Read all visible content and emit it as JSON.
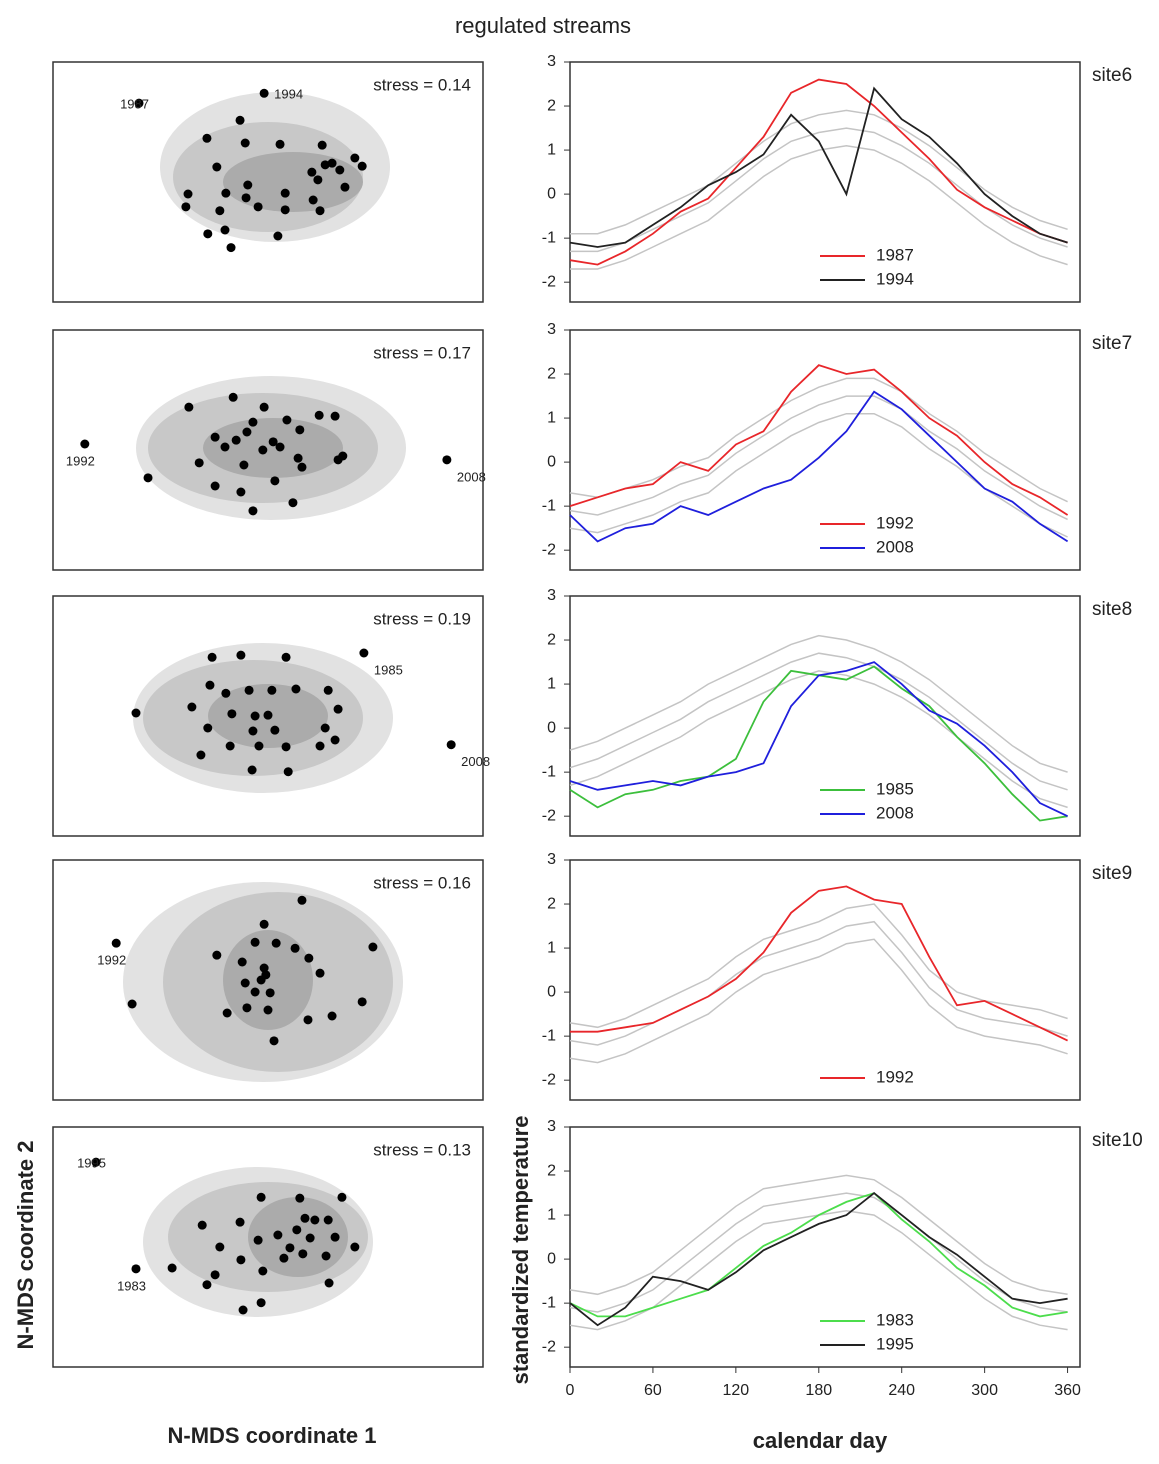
{
  "title": "regulated streams",
  "nmds_x_label": "N-MDS coordinate 1",
  "nmds_y_label": "N-MDS coordinate 2",
  "line_x_label": "calendar day",
  "line_y_label": "standardized temperature",
  "chart_data": [
    {
      "type": "scatter",
      "annotation": "stress = 0.14",
      "color": "#000000",
      "xlim": [
        -5,
        5
      ],
      "ylim": [
        -2.8,
        2.8
      ],
      "x": [
        -1.42,
        -0.65,
        -0.53,
        0.28,
        -1.19,
        -1.86,
        -1.91,
        -0.98,
        -0.47,
        -0.23,
        -0.51,
        -1.12,
        -1.4,
        -1.0,
        -0.86,
        0.23,
        0.4,
        0.4,
        1.02,
        1.26,
        1.33,
        1.49,
        1.67,
        1.79,
        2.02,
        2.19,
        1.05,
        1.21,
        1.16
      ],
      "y": [
        1.02,
        1.44,
        0.91,
        0.88,
        0.35,
        -0.28,
        -0.58,
        -0.26,
        -0.07,
        -0.58,
        -0.37,
        -0.67,
        -1.21,
        -1.12,
        -1.53,
        -1.26,
        -0.26,
        -0.65,
        0.23,
        0.86,
        0.4,
        0.44,
        0.28,
        -0.12,
        0.56,
        0.37,
        -0.42,
        -0.67,
        0.05
      ],
      "outliers": [
        {
          "label": "1987",
          "x": -3.0,
          "y": 1.84
        },
        {
          "label": "1994",
          "x": -0.09,
          "y": 2.07
        }
      ]
    },
    {
      "type": "line",
      "site_label": "site6",
      "xlim": [
        0,
        369
      ],
      "ylim": [
        -2.45,
        3
      ],
      "yticks": [
        -2,
        -1,
        0,
        1,
        2,
        3
      ],
      "legend": "lower center",
      "x": [
        0,
        20,
        40,
        60,
        80,
        100,
        120,
        140,
        160,
        180,
        200,
        220,
        240,
        260,
        280,
        300,
        320,
        340,
        360
      ],
      "background_series": [
        {
          "color": "#c4c4c4",
          "values": [
            -1.3,
            -1.3,
            -1.1,
            -0.8,
            -0.5,
            -0.2,
            0.3,
            0.8,
            1.2,
            1.4,
            1.5,
            1.4,
            1.1,
            0.7,
            0.2,
            -0.3,
            -0.7,
            -1.0,
            -1.2
          ]
        },
        {
          "color": "#c4c4c4",
          "values": [
            -0.9,
            -0.9,
            -0.7,
            -0.4,
            -0.1,
            0.2,
            0.7,
            1.2,
            1.6,
            1.8,
            1.9,
            1.8,
            1.5,
            1.1,
            0.6,
            0.1,
            -0.3,
            -0.6,
            -0.8
          ]
        },
        {
          "color": "#c4c4c4",
          "values": [
            -1.7,
            -1.7,
            -1.5,
            -1.2,
            -0.9,
            -0.6,
            -0.1,
            0.4,
            0.8,
            1.0,
            1.1,
            1.0,
            0.7,
            0.3,
            -0.2,
            -0.7,
            -1.1,
            -1.4,
            -1.6
          ]
        }
      ],
      "series": [
        {
          "name": "1987",
          "color": "#e8262a",
          "values": [
            -1.5,
            -1.6,
            -1.3,
            -0.9,
            -0.4,
            -0.1,
            0.6,
            1.3,
            2.3,
            2.6,
            2.5,
            2.0,
            1.4,
            0.8,
            0.1,
            -0.3,
            -0.6,
            -0.9,
            -1.1
          ]
        },
        {
          "name": "1994",
          "color": "#222222",
          "values": [
            -1.1,
            -1.2,
            -1.1,
            -0.7,
            -0.3,
            0.2,
            0.5,
            0.9,
            1.8,
            1.2,
            0.0,
            2.4,
            1.7,
            1.3,
            0.7,
            0.0,
            -0.5,
            -0.9,
            -1.1
          ]
        }
      ]
    },
    {
      "type": "scatter",
      "annotation": "stress = 0.17",
      "color": "#000000",
      "xlim": [
        -5,
        5
      ],
      "ylim": [
        -2.8,
        2.8
      ],
      "x": [
        -1.84,
        -0.81,
        -0.09,
        -0.35,
        0.44,
        1.19,
        1.56,
        -1.23,
        -0.74,
        -0.49,
        0.12,
        0.74,
        0.28,
        -1.0,
        -0.12,
        -1.6,
        -0.56,
        0.7,
        1.63,
        1.74,
        0.79,
        -1.23,
        -0.63,
        0.16,
        -2.79,
        0.58,
        -0.35
      ],
      "y": [
        1.0,
        1.23,
        1.0,
        0.65,
        0.7,
        0.81,
        0.79,
        0.3,
        0.23,
        0.42,
        0.19,
        0.47,
        0.07,
        0.07,
        0.0,
        -0.3,
        -0.35,
        -0.19,
        -0.23,
        -0.14,
        -0.4,
        -0.84,
        -0.98,
        -0.72,
        -0.65,
        -1.23,
        -1.42
      ],
      "outliers": [
        {
          "label": "1992",
          "x": -4.26,
          "y": 0.14
        },
        {
          "label": "2008",
          "x": 4.16,
          "y": -0.23
        }
      ]
    },
    {
      "type": "line",
      "site_label": "site7",
      "xlim": [
        0,
        369
      ],
      "ylim": [
        -2.45,
        3
      ],
      "yticks": [
        -2,
        -1,
        0,
        1,
        2,
        3
      ],
      "legend": "lower center",
      "x": [
        0,
        20,
        40,
        60,
        80,
        100,
        120,
        140,
        160,
        180,
        200,
        220,
        240,
        260,
        280,
        300,
        320,
        340,
        360
      ],
      "background_series": [
        {
          "color": "#c4c4c4",
          "values": [
            -1.1,
            -1.2,
            -1.0,
            -0.8,
            -0.5,
            -0.3,
            0.2,
            0.6,
            1.0,
            1.3,
            1.5,
            1.5,
            1.2,
            0.7,
            0.3,
            -0.2,
            -0.6,
            -1.0,
            -1.3
          ]
        },
        {
          "color": "#c4c4c4",
          "values": [
            -0.7,
            -0.8,
            -0.6,
            -0.4,
            -0.1,
            0.1,
            0.6,
            1.0,
            1.4,
            1.7,
            1.9,
            1.9,
            1.6,
            1.1,
            0.7,
            0.2,
            -0.2,
            -0.6,
            -0.9
          ]
        },
        {
          "color": "#c4c4c4",
          "values": [
            -1.5,
            -1.6,
            -1.4,
            -1.2,
            -0.9,
            -0.7,
            -0.2,
            0.2,
            0.6,
            0.9,
            1.1,
            1.1,
            0.8,
            0.3,
            -0.1,
            -0.6,
            -1.0,
            -1.4,
            -1.7
          ]
        }
      ],
      "series": [
        {
          "name": "1992",
          "color": "#e8262a",
          "values": [
            -1.0,
            -0.8,
            -0.6,
            -0.5,
            0.0,
            -0.2,
            0.4,
            0.7,
            1.6,
            2.2,
            2.0,
            2.1,
            1.6,
            1.0,
            0.6,
            0.0,
            -0.5,
            -0.8,
            -1.2
          ]
        },
        {
          "name": "2008",
          "color": "#1f1fdc",
          "values": [
            -1.2,
            -1.8,
            -1.5,
            -1.4,
            -1.0,
            -1.2,
            -0.9,
            -0.6,
            -0.4,
            0.1,
            0.7,
            1.6,
            1.2,
            0.6,
            0.0,
            -0.6,
            -0.9,
            -1.4,
            -1.8
          ]
        }
      ]
    },
    {
      "type": "scatter",
      "annotation": "stress = 0.19",
      "color": "#000000",
      "xlim": [
        -5,
        5
      ],
      "ylim": [
        -2.8,
        2.8
      ],
      "x": [
        -1.3,
        -0.63,
        0.42,
        -1.35,
        -0.98,
        -0.44,
        0.09,
        0.65,
        1.4,
        -3.07,
        -1.77,
        -0.84,
        -0.3,
        0.0,
        1.63,
        -1.4,
        -0.35,
        0.16,
        1.33,
        -0.88,
        -0.21,
        0.42,
        1.21,
        -1.56,
        -0.37,
        0.47,
        1.56
      ],
      "y": [
        1.37,
        1.42,
        1.37,
        0.72,
        0.53,
        0.6,
        0.6,
        0.63,
        0.6,
        0.07,
        0.21,
        0.05,
        0.0,
        0.02,
        0.16,
        -0.28,
        -0.35,
        -0.33,
        -0.28,
        -0.7,
        -0.7,
        -0.72,
        -0.7,
        -0.91,
        -1.26,
        -1.3,
        -0.56
      ],
      "outliers": [
        {
          "label": "1985",
          "x": 2.23,
          "y": 1.47
        },
        {
          "label": "2008",
          "x": 4.26,
          "y": -0.67
        }
      ]
    },
    {
      "type": "line",
      "site_label": "site8",
      "xlim": [
        0,
        369
      ],
      "ylim": [
        -2.45,
        3
      ],
      "yticks": [
        -2,
        -1,
        0,
        1,
        2,
        3
      ],
      "legend": "lower center",
      "x": [
        0,
        20,
        40,
        60,
        80,
        100,
        120,
        140,
        160,
        180,
        200,
        220,
        240,
        260,
        280,
        300,
        320,
        340,
        360
      ],
      "background_series": [
        {
          "color": "#c4c4c4",
          "values": [
            -0.9,
            -0.7,
            -0.4,
            -0.1,
            0.2,
            0.6,
            0.9,
            1.2,
            1.5,
            1.7,
            1.6,
            1.4,
            1.1,
            0.7,
            0.2,
            -0.3,
            -0.8,
            -1.2,
            -1.4
          ]
        },
        {
          "color": "#c4c4c4",
          "values": [
            -0.5,
            -0.3,
            0.0,
            0.3,
            0.6,
            1.0,
            1.3,
            1.6,
            1.9,
            2.1,
            2.0,
            1.8,
            1.5,
            1.1,
            0.6,
            0.1,
            -0.4,
            -0.8,
            -1.0
          ]
        },
        {
          "color": "#c4c4c4",
          "values": [
            -1.3,
            -1.1,
            -0.8,
            -0.5,
            -0.2,
            0.2,
            0.5,
            0.8,
            1.1,
            1.3,
            1.2,
            1.0,
            0.7,
            0.3,
            -0.2,
            -0.7,
            -1.2,
            -1.6,
            -1.8
          ]
        }
      ],
      "series": [
        {
          "name": "1985",
          "color": "#3cbf3c",
          "values": [
            -1.4,
            -1.8,
            -1.5,
            -1.4,
            -1.2,
            -1.1,
            -0.7,
            0.6,
            1.3,
            1.2,
            1.1,
            1.4,
            0.9,
            0.5,
            -0.2,
            -0.8,
            -1.5,
            -2.1,
            -2.0
          ]
        },
        {
          "name": "2008",
          "color": "#1f1fdc",
          "values": [
            -1.2,
            -1.4,
            -1.3,
            -1.2,
            -1.3,
            -1.1,
            -1.0,
            -0.8,
            0.5,
            1.2,
            1.3,
            1.5,
            1.0,
            0.4,
            0.1,
            -0.4,
            -1.0,
            -1.7,
            -2.0
          ]
        }
      ]
    },
    {
      "type": "scatter",
      "annotation": "stress = 0.16",
      "color": "#000000",
      "xlim": [
        -5,
        5
      ],
      "ylim": [
        -2.8,
        2.8
      ],
      "x": [
        0.79,
        -0.09,
        -0.3,
        0.19,
        0.63,
        -1.19,
        -0.6,
        -0.09,
        -0.05,
        -0.16,
        0.95,
        1.21,
        2.44,
        -0.53,
        -0.3,
        0.05,
        2.19,
        -0.49,
        0.0,
        -0.95,
        0.93,
        1.49,
        0.14,
        -3.16
      ],
      "y": [
        1.86,
        1.3,
        0.88,
        0.86,
        0.74,
        0.58,
        0.42,
        0.28,
        0.12,
        0.0,
        0.51,
        0.16,
        0.77,
        -0.07,
        -0.28,
        -0.3,
        -0.51,
        -0.65,
        -0.7,
        -0.77,
        -0.93,
        -0.84,
        -1.42,
        -0.56
      ],
      "outliers": [
        {
          "label": "1992",
          "x": -3.53,
          "y": 0.86
        }
      ]
    },
    {
      "type": "line",
      "site_label": "site9",
      "xlim": [
        0,
        369
      ],
      "ylim": [
        -2.45,
        3
      ],
      "yticks": [
        -2,
        -1,
        0,
        1,
        2,
        3
      ],
      "legend": "lower center",
      "x": [
        0,
        20,
        40,
        60,
        80,
        100,
        120,
        140,
        160,
        180,
        200,
        220,
        240,
        260,
        280,
        300,
        320,
        340,
        360
      ],
      "background_series": [
        {
          "color": "#c4c4c4",
          "values": [
            -1.1,
            -1.2,
            -1.0,
            -0.7,
            -0.4,
            -0.1,
            0.4,
            0.8,
            1.0,
            1.2,
            1.5,
            1.6,
            0.9,
            0.1,
            -0.4,
            -0.6,
            -0.7,
            -0.8,
            -1.0
          ]
        },
        {
          "color": "#c4c4c4",
          "values": [
            -0.7,
            -0.8,
            -0.6,
            -0.3,
            0.0,
            0.3,
            0.8,
            1.2,
            1.4,
            1.6,
            1.9,
            2.0,
            1.3,
            0.5,
            0.0,
            -0.2,
            -0.3,
            -0.4,
            -0.6
          ]
        },
        {
          "color": "#c4c4c4",
          "values": [
            -1.5,
            -1.6,
            -1.4,
            -1.1,
            -0.8,
            -0.5,
            0.0,
            0.4,
            0.6,
            0.8,
            1.1,
            1.2,
            0.5,
            -0.3,
            -0.8,
            -1.0,
            -1.1,
            -1.2,
            -1.4
          ]
        }
      ],
      "series": [
        {
          "name": "1992",
          "color": "#e8262a",
          "values": [
            -0.9,
            -0.9,
            -0.8,
            -0.7,
            -0.4,
            -0.1,
            0.3,
            0.9,
            1.8,
            2.3,
            2.4,
            2.1,
            2.0,
            0.8,
            -0.3,
            -0.2,
            -0.5,
            -0.8,
            -1.1
          ]
        }
      ]
    },
    {
      "type": "scatter",
      "annotation": "stress = 0.13",
      "color": "#000000",
      "xlim": [
        -5,
        5
      ],
      "ylim": [
        -2.8,
        2.8
      ],
      "x": [
        -0.16,
        0.74,
        1.72,
        -1.53,
        -0.65,
        0.86,
        1.09,
        1.4,
        0.23,
        -0.23,
        0.67,
        0.98,
        1.56,
        -1.12,
        0.51,
        0.81,
        2.02,
        -0.63,
        0.37,
        1.35,
        -2.23,
        -0.12,
        -1.23,
        1.42,
        -1.42,
        -0.16,
        -0.58
      ],
      "y": [
        1.16,
        1.14,
        1.16,
        0.51,
        0.58,
        0.67,
        0.63,
        0.63,
        0.28,
        0.16,
        0.4,
        0.21,
        0.23,
        0.0,
        -0.02,
        -0.16,
        0.0,
        -0.3,
        -0.26,
        -0.21,
        -0.49,
        -0.56,
        -0.65,
        -0.84,
        -0.88,
        -1.3,
        -1.47
      ],
      "outliers": [
        {
          "label": "1995",
          "x": -4.0,
          "y": 1.98
        },
        {
          "label": "1983",
          "x": -3.07,
          "y": -0.51
        }
      ]
    },
    {
      "type": "line",
      "site_label": "site10",
      "xlim": [
        0,
        369
      ],
      "ylim": [
        -2.45,
        3
      ],
      "yticks": [
        -2,
        -1,
        0,
        1,
        2,
        3
      ],
      "xticks": [
        0,
        60,
        120,
        180,
        240,
        300,
        360
      ],
      "legend": "lower center",
      "x": [
        0,
        20,
        40,
        60,
        80,
        100,
        120,
        140,
        160,
        180,
        200,
        220,
        240,
        260,
        280,
        300,
        320,
        340,
        360
      ],
      "background_series": [
        {
          "color": "#c4c4c4",
          "values": [
            -1.1,
            -1.2,
            -1.0,
            -0.7,
            -0.2,
            0.3,
            0.8,
            1.2,
            1.3,
            1.4,
            1.5,
            1.4,
            1.0,
            0.5,
            0.0,
            -0.5,
            -0.9,
            -1.1,
            -1.2
          ]
        },
        {
          "color": "#c4c4c4",
          "values": [
            -0.7,
            -0.8,
            -0.6,
            -0.3,
            0.2,
            0.7,
            1.2,
            1.6,
            1.7,
            1.8,
            1.9,
            1.8,
            1.4,
            0.9,
            0.4,
            -0.1,
            -0.5,
            -0.7,
            -0.8
          ]
        },
        {
          "color": "#c4c4c4",
          "values": [
            -1.5,
            -1.6,
            -1.4,
            -1.1,
            -0.6,
            -0.1,
            0.4,
            0.8,
            0.9,
            1.0,
            1.1,
            1.0,
            0.6,
            0.1,
            -0.4,
            -0.9,
            -1.3,
            -1.5,
            -1.6
          ]
        }
      ],
      "series": [
        {
          "name": "1983",
          "color": "#4cdd4c",
          "values": [
            -1.0,
            -1.3,
            -1.3,
            -1.1,
            -0.9,
            -0.7,
            -0.2,
            0.3,
            0.6,
            1.0,
            1.3,
            1.5,
            0.9,
            0.4,
            -0.2,
            -0.6,
            -1.1,
            -1.3,
            -1.2
          ]
        },
        {
          "name": "1995",
          "color": "#222222",
          "values": [
            -1.0,
            -1.5,
            -1.1,
            -0.4,
            -0.5,
            -0.7,
            -0.3,
            0.2,
            0.5,
            0.8,
            1.0,
            1.5,
            1.0,
            0.5,
            0.1,
            -0.4,
            -0.9,
            -1.0,
            -0.9
          ]
        }
      ]
    }
  ]
}
